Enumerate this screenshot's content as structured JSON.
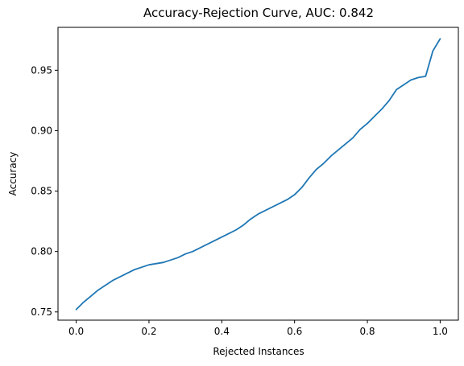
{
  "chart_data": {
    "type": "line",
    "title": "Accuracy-Rejection Curve, AUC: 0.842",
    "xlabel": "Rejected Instances",
    "ylabel": "Accuracy",
    "xlim": [
      -0.05,
      1.05
    ],
    "ylim": [
      0.7432,
      0.9855
    ],
    "x_ticks": [
      0.0,
      0.2,
      0.4,
      0.6,
      0.8,
      1.0
    ],
    "x_tick_labels": [
      "0.0",
      "0.2",
      "0.4",
      "0.6",
      "0.8",
      "1.0"
    ],
    "y_ticks": [
      0.75,
      0.8,
      0.85,
      0.9,
      0.95
    ],
    "y_tick_labels": [
      "0.75",
      "0.80",
      "0.85",
      "0.90",
      "0.95"
    ],
    "grid": false,
    "color": "#1f77b4",
    "series": [
      {
        "x": [
          0.0,
          0.02,
          0.04,
          0.06,
          0.08,
          0.1,
          0.12,
          0.14,
          0.16,
          0.18,
          0.2,
          0.22,
          0.24,
          0.26,
          0.28,
          0.3,
          0.32,
          0.34,
          0.36,
          0.38,
          0.4,
          0.42,
          0.44,
          0.46,
          0.48,
          0.5,
          0.52,
          0.54,
          0.56,
          0.58,
          0.6,
          0.62,
          0.64,
          0.66,
          0.68,
          0.7,
          0.72,
          0.74,
          0.76,
          0.78,
          0.8,
          0.82,
          0.84,
          0.86,
          0.88,
          0.9,
          0.92,
          0.94,
          0.96,
          0.98,
          1.0
        ],
        "y": [
          0.752,
          0.758,
          0.763,
          0.768,
          0.772,
          0.776,
          0.779,
          0.782,
          0.785,
          0.787,
          0.789,
          0.79,
          0.791,
          0.793,
          0.795,
          0.798,
          0.8,
          0.803,
          0.806,
          0.809,
          0.812,
          0.815,
          0.818,
          0.822,
          0.827,
          0.831,
          0.834,
          0.837,
          0.84,
          0.843,
          0.847,
          0.853,
          0.861,
          0.868,
          0.873,
          0.879,
          0.884,
          0.889,
          0.894,
          0.901,
          0.906,
          0.912,
          0.918,
          0.925,
          0.934,
          0.938,
          0.942,
          0.944,
          0.945,
          0.966,
          0.976
        ]
      }
    ]
  }
}
